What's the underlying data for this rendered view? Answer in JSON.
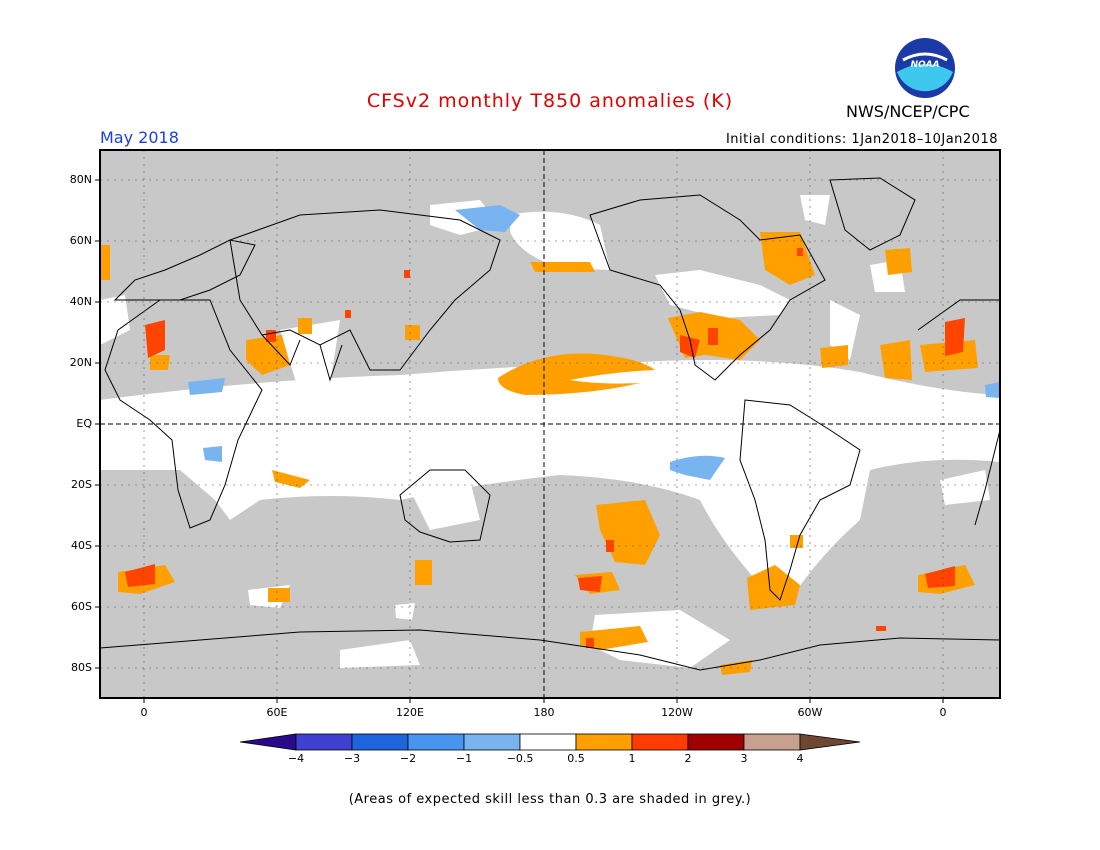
{
  "header": {
    "title": "CFSv2 monthly T850 anomalies (K)",
    "period": "May 2018",
    "agency": "NWS/NCEP/CPC",
    "initial_conditions": "Initial conditions: 1Jan2018–10Jan2018",
    "logo_text": "NOAA"
  },
  "map": {
    "lat_labels": [
      "80N",
      "60N",
      "40N",
      "20N",
      "EQ",
      "20S",
      "40S",
      "60S",
      "80S"
    ],
    "lon_labels": [
      "0",
      "60E",
      "120E",
      "180",
      "120W",
      "60W",
      "0"
    ],
    "grey_meaning": "skill < 0.3",
    "colors": {
      "grey": "#c8c8c8",
      "neutral": "#ffffff",
      "blue_light": "#78b4f0",
      "orange": "#ffa000",
      "orange_red": "#ff4400",
      "red": "#e82000"
    }
  },
  "colorbar": {
    "labels": [
      "−4",
      "−3",
      "−2",
      "−1",
      "−0.5",
      "0.5",
      "1",
      "2",
      "3",
      "4"
    ],
    "colors": [
      "#2a0a8c",
      "#4040d0",
      "#1e64dc",
      "#4696f0",
      "#78b4f0",
      "#ffffff",
      "#ffa000",
      "#ff3c00",
      "#a00000",
      "#c8a090",
      "#6e4632"
    ]
  },
  "footnote": "(Areas of expected skill less than 0.3 are shaded in grey.)"
}
